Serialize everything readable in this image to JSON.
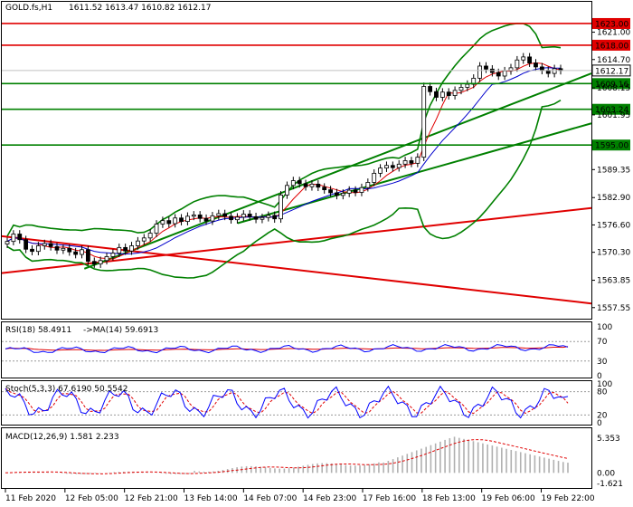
{
  "header": {
    "symbol_label": "GOLD.fs,H1",
    "ohlc": "1611.52 1613.47 1610.82 1612.17"
  },
  "colors": {
    "background": "#ffffff",
    "frame": "#000000",
    "candle_up": "#1a8a1a",
    "candle_down": "#000000",
    "support": "#008000",
    "resistance": "#e00000",
    "ma_fast": "#e00000",
    "ma_slow": "#0000cc",
    "bollinger": "#008000",
    "indicator_main": "#0000ff",
    "indicator_signal": "#e00000",
    "macd_hist": "#b0b0b0"
  },
  "chart_data": [
    {
      "type": "candlestick",
      "symbol": "GOLD.fs",
      "timeframe": "H1",
      "ylim": [
        1555,
        1628
      ],
      "y_ticks": [
        "1621.00",
        "1614.70",
        "1608.15",
        "1601.95",
        "1589.35",
        "1582.90",
        "1576.60",
        "1570.30",
        "1563.85",
        "1557.55"
      ],
      "x_ticks": [
        "11 Feb 2020",
        "12 Feb 05:00",
        "12 Feb 21:00",
        "13 Feb 14:00",
        "14 Feb 07:00",
        "14 Feb 23:00",
        "17 Feb 16:00",
        "18 Feb 13:00",
        "19 Feb 06:00",
        "19 Feb 22:00"
      ],
      "horizontal_levels": [
        {
          "value": 1623.0,
          "label": "1623.00",
          "color": "#e00000"
        },
        {
          "value": 1618.0,
          "label": "1618.00",
          "color": "#e00000"
        },
        {
          "value": 1609.16,
          "label": "1609.16",
          "color": "#008000"
        },
        {
          "value": 1603.24,
          "label": "1603.24",
          "color": "#008000"
        },
        {
          "value": 1595.0,
          "label": "1595.00",
          "color": "#008000"
        }
      ],
      "current_price": {
        "value": 1612.17,
        "label": "1612.17"
      },
      "trend_lines": [
        {
          "color": "#e00000",
          "from": [
            0,
            1574.0
          ],
          "to": [
            1,
            1558.5
          ]
        },
        {
          "color": "#e00000",
          "from": [
            0,
            1565.5
          ],
          "to": [
            1,
            1580.5
          ]
        },
        {
          "color": "#008000",
          "from": [
            0.14,
            1566.5
          ],
          "to": [
            1,
            1611.5
          ]
        },
        {
          "color": "#008000",
          "from": [
            0.4,
            1577.0
          ],
          "to": [
            1,
            1600.0
          ]
        }
      ],
      "candles_close": [
        1572.8,
        1574.5,
        1573.2,
        1571.0,
        1570.5,
        1571.8,
        1572.3,
        1571.6,
        1570.8,
        1571.2,
        1570.4,
        1569.8,
        1570.9,
        1568.2,
        1567.6,
        1568.4,
        1569.3,
        1570.1,
        1571.4,
        1570.6,
        1571.8,
        1572.9,
        1573.6,
        1574.7,
        1576.8,
        1577.6,
        1576.9,
        1578.2,
        1577.4,
        1578.6,
        1578.9,
        1578.1,
        1577.5,
        1578.7,
        1579.2,
        1578.6,
        1577.8,
        1578.4,
        1579.1,
        1578.5,
        1577.9,
        1578.3,
        1578.8,
        1578.0,
        1583.5,
        1585.7,
        1586.8,
        1586.1,
        1585.4,
        1586.0,
        1585.3,
        1584.7,
        1584.0,
        1583.4,
        1583.9,
        1584.6,
        1584.1,
        1585.2,
        1586.4,
        1588.5,
        1589.7,
        1590.3,
        1589.8,
        1590.6,
        1591.4,
        1590.8,
        1592.2,
        1608.5,
        1607.3,
        1606.0,
        1607.2,
        1606.4,
        1607.6,
        1608.3,
        1609.0,
        1610.4,
        1613.2,
        1612.5,
        1611.7,
        1610.9,
        1612.1,
        1612.8,
        1614.6,
        1615.3,
        1613.9,
        1613.0,
        1612.2,
        1611.5,
        1612.6,
        1612.17
      ]
    },
    {
      "type": "line",
      "name": "RSI(18) 58.4911",
      "signal_name": "->MA(14) 59.6913",
      "rsi": 58.4911,
      "ma": 59.6913,
      "ylim": [
        0,
        100
      ],
      "y_ticks": [
        "100",
        "70",
        "30",
        "0"
      ]
    },
    {
      "type": "line",
      "name": "Stoch(5,3,3) 67.6190 50.5542",
      "main": 67.619,
      "signal": 50.5542,
      "ylim": [
        0,
        100
      ],
      "y_ticks": [
        "100",
        "80",
        "20",
        "0"
      ]
    },
    {
      "type": "bar",
      "name": "MACD(12,26,9) 1.581 2.233",
      "macd": 1.581,
      "signal": 2.233,
      "ylim": [
        -2.2,
        6.5
      ],
      "y_ticks": [
        "5.353",
        "0.00",
        "-1.621"
      ]
    }
  ]
}
